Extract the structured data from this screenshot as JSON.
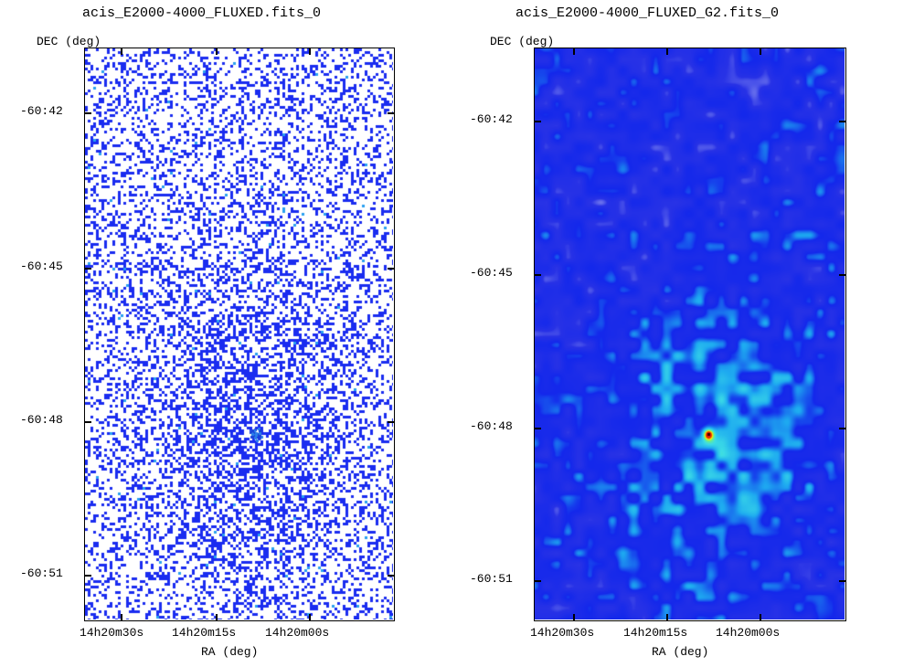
{
  "colors": {
    "raw_pixels": "#1a2cf0",
    "smooth_bg": "#1a28e6",
    "smooth_mid": "#28c8f0",
    "source": "#ff3000"
  },
  "chart_data": [
    {
      "type": "heatmap",
      "title": "acis_E2000-4000_FLUXED.fits_0",
      "xlabel": "RA (deg)",
      "ylabel": "DEC (deg)",
      "x_ticks": [
        "14h20m30s",
        "14h20m15s",
        "14h20m00s"
      ],
      "y_ticks": [
        "-60:42",
        "-60:45",
        "-60:48",
        "-60:51"
      ],
      "style": "sparse-pixel",
      "source_position": {
        "ra": "14h20m10s",
        "dec": "-60:48:15"
      }
    },
    {
      "type": "heatmap",
      "title": "acis_E2000-4000_FLUXED_G2.fits_0",
      "xlabel": "RA (deg)",
      "ylabel": "DEC (deg)",
      "x_ticks": [
        "14h20m30s",
        "14h20m15s",
        "14h20m00s"
      ],
      "y_ticks": [
        "-60:42",
        "-60:45",
        "-60:48",
        "-60:51"
      ],
      "style": "smoothed",
      "source_position": {
        "ra": "14h20m10s",
        "dec": "-60:48:15"
      }
    }
  ]
}
